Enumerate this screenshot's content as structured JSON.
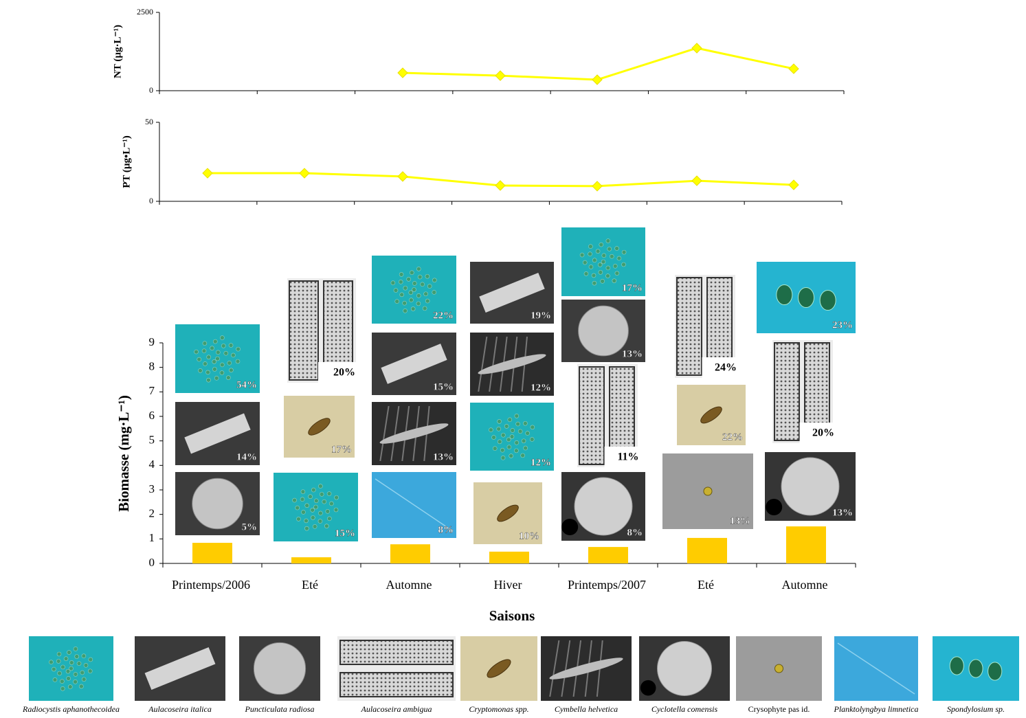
{
  "chart_data": [
    {
      "type": "line",
      "ylabel": "NT (µg·L⁻¹)",
      "values": [
        null,
        null,
        570,
        480,
        350,
        1360,
        700
      ],
      "color": "#ffff00",
      "ylim": [
        0,
        2500
      ],
      "yticks": [
        0,
        2500
      ]
    },
    {
      "type": "line",
      "ylabel": "PT (µg•L⁻¹)",
      "values": [
        17.8,
        17.8,
        15.7,
        10,
        9.6,
        13,
        10.4
      ],
      "color": "#ffff00",
      "ylim": [
        0,
        50
      ],
      "yticks": [
        0,
        50
      ]
    },
    {
      "type": "bar",
      "ylabel": "Biomasse (mg·L⁻¹)",
      "xlabel": "Saisons",
      "categories": [
        "Printemps/2006",
        "Eté",
        "Automne",
        "Hiver",
        "Printemps/2007",
        "Eté",
        "Automne"
      ],
      "values": [
        0.84,
        0.25,
        0.78,
        0.48,
        0.67,
        1.04,
        1.51
      ],
      "color": "#ffcc00",
      "ylim": [
        0,
        9
      ],
      "yticks": [
        0,
        1,
        2,
        3,
        4,
        5,
        6,
        7,
        8,
        9
      ],
      "tile_labels": [
        [
          "54%",
          "14%",
          "5%"
        ],
        [
          "20%",
          "17%",
          "15%"
        ],
        [
          "22%",
          "15%",
          "13%",
          "8%"
        ],
        [
          "19%",
          "12%",
          "12%",
          "10%"
        ],
        [
          "17%",
          "13%",
          "11%",
          "8%"
        ],
        [
          "24%",
          "22%",
          "13%"
        ],
        [
          "23%",
          "20%",
          "13%"
        ]
      ]
    }
  ],
  "legend": {
    "species": [
      "Radiocystis aphanothecoidea",
      "Aulacoseira italica",
      "Puncticulata radiosa",
      "Aulacoseira ambigua",
      "Cryptomonas spp.",
      "Cymbella helvetica",
      "Cyclotella comensis",
      "Crysophyte pas id.",
      "Planktolyngbya limnetica",
      "Spondylosium sp."
    ]
  }
}
